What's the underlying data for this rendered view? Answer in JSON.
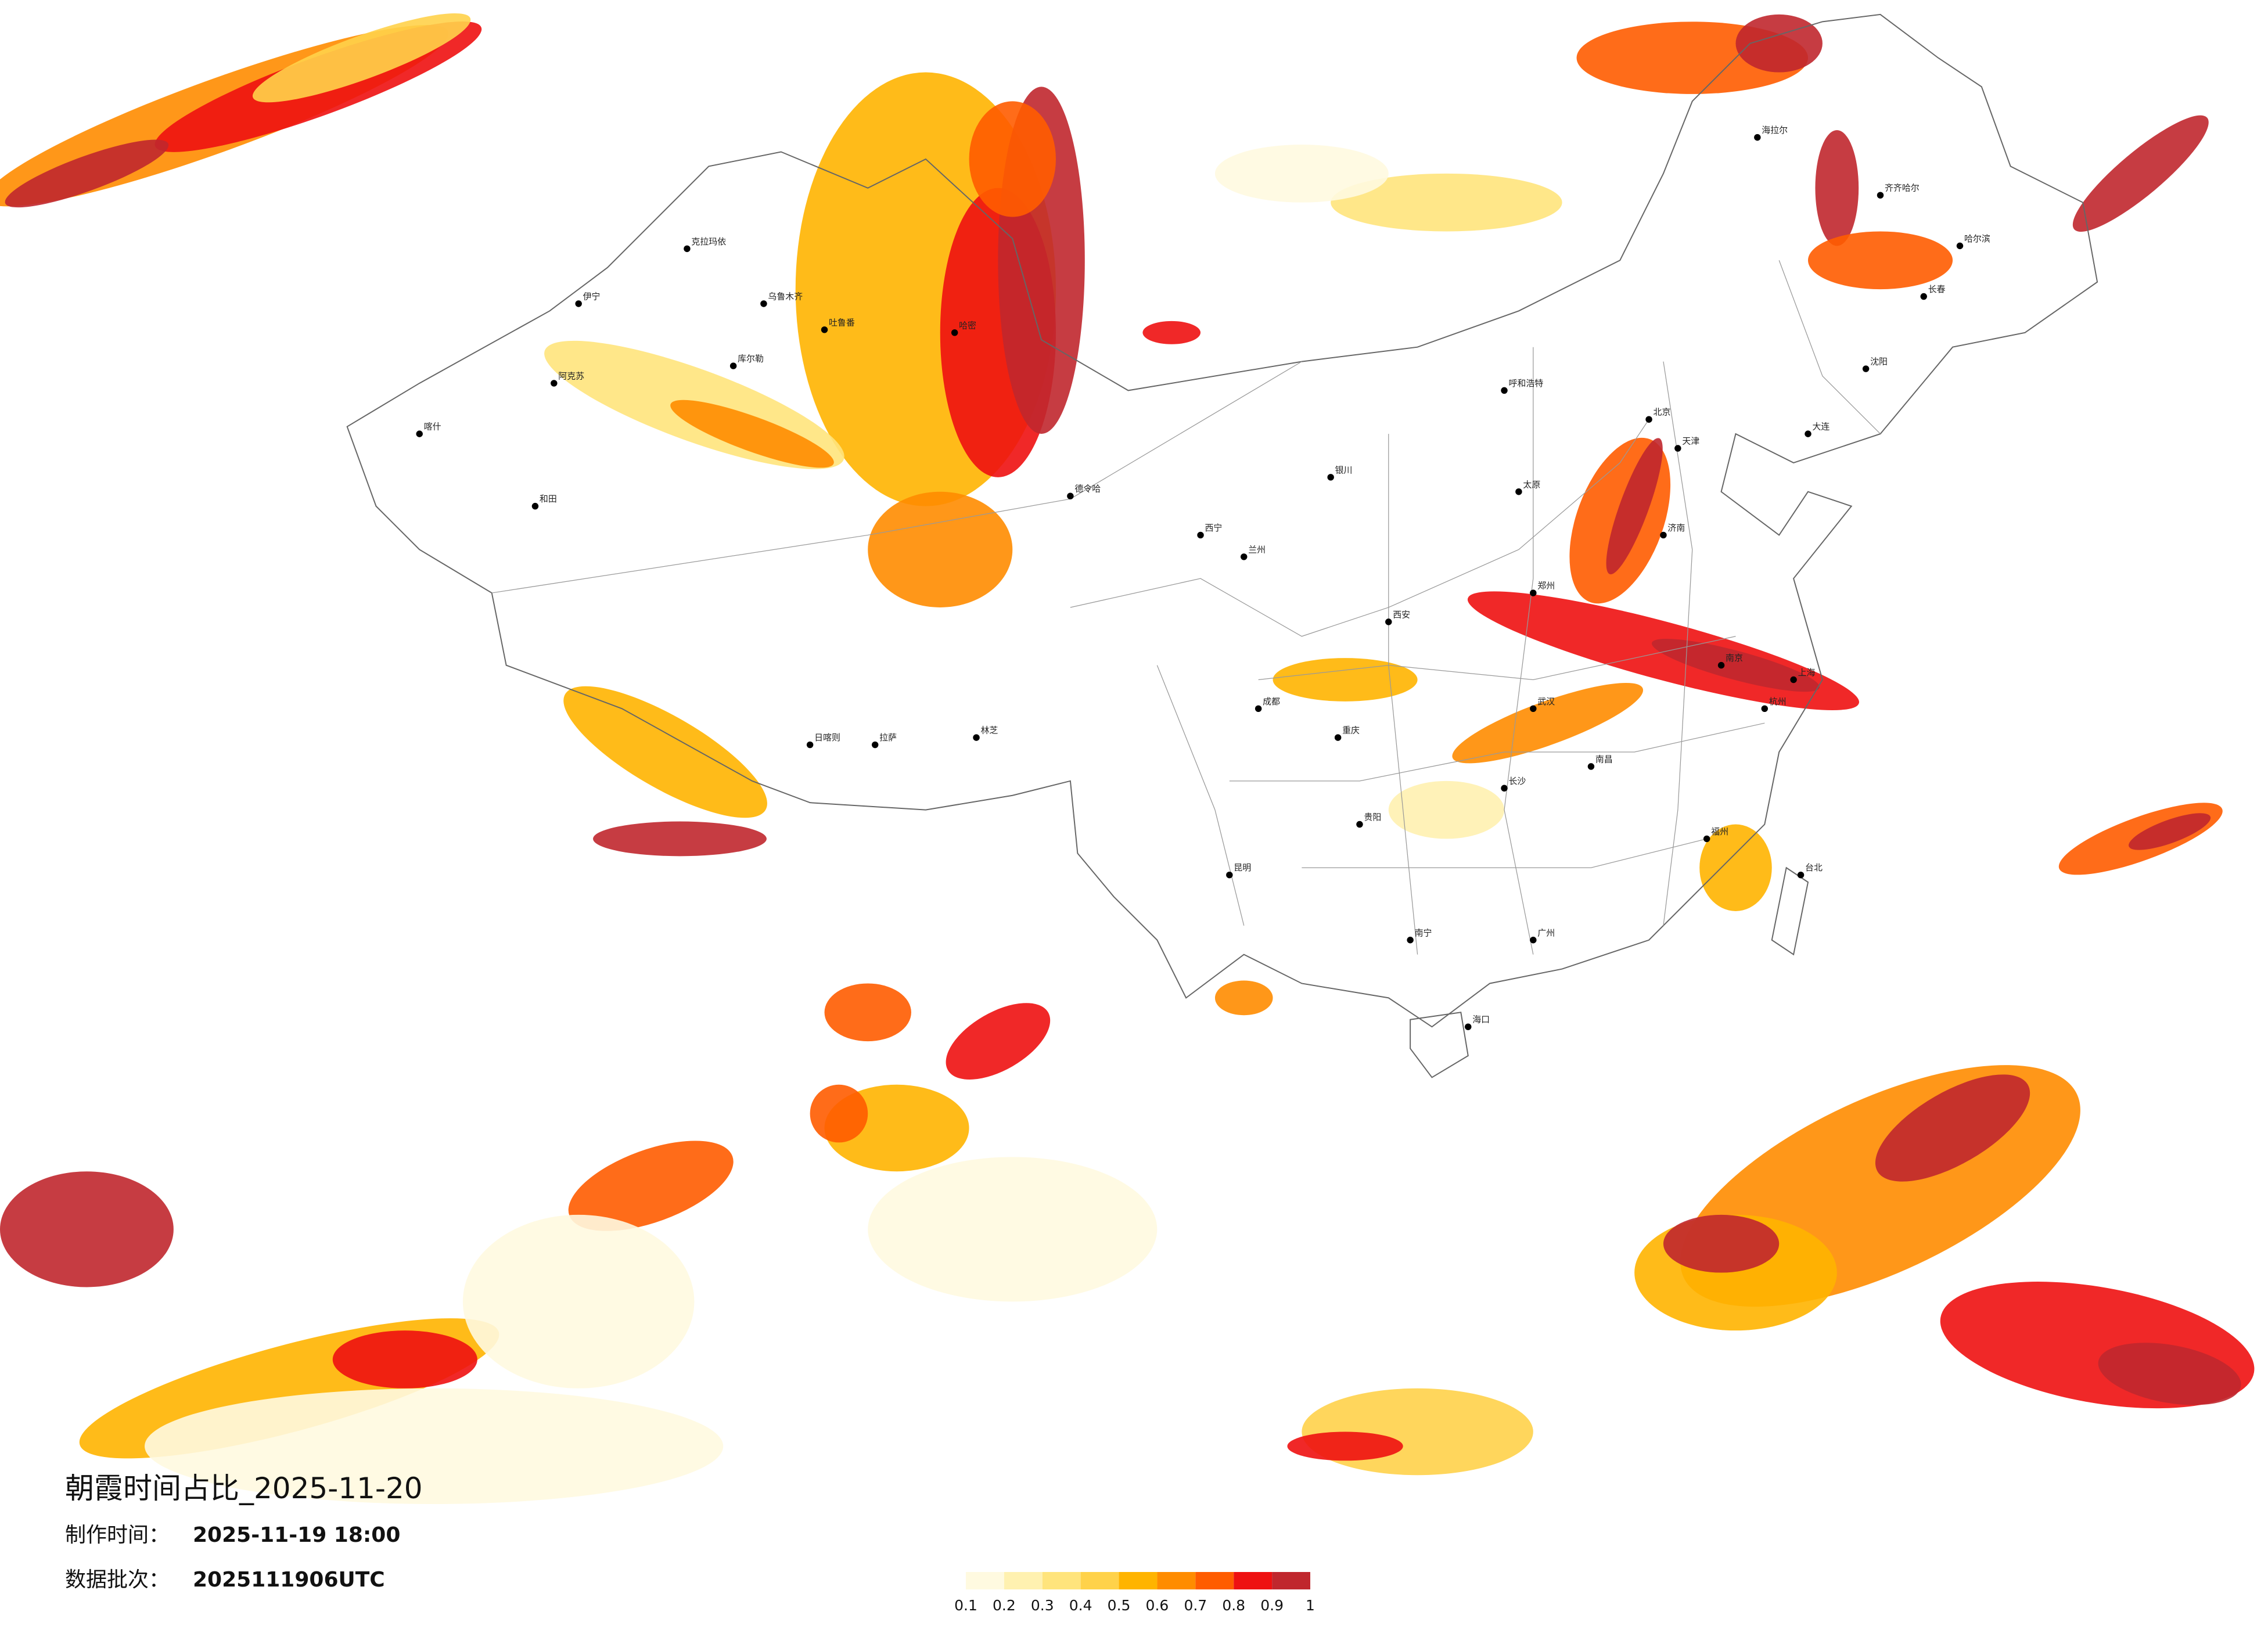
{
  "title": "朝霞时间占比_2025-11-20",
  "make_time_label": "制作时间：",
  "make_time": "2025-11-19 18:00",
  "batch_label": "数据批次：",
  "batch": "2025111906UTC",
  "colorbar": {
    "ticks": [
      0.1,
      0.2,
      0.3,
      0.4,
      0.5,
      0.6,
      0.7,
      0.8,
      0.9,
      1
    ],
    "colors": [
      "#fffae0",
      "#fff1b0",
      "#ffe47c",
      "#ffd24a",
      "#ffb400",
      "#ff8c00",
      "#ff5c00",
      "#ee1111",
      "#c0272d"
    ]
  },
  "cities": [
    "克拉玛依",
    "伊宁",
    "乌鲁木齐",
    "吐鲁番",
    "哈密",
    "库尔勒",
    "阿克苏",
    "喀什",
    "和田",
    "德令哈",
    "拉萨",
    "日喀则",
    "林芝",
    "呼和浩特",
    "北京",
    "天津",
    "哈尔滨",
    "长春",
    "兰州",
    "西安",
    "成都",
    "重庆",
    "昆明",
    "贵阳",
    "南宁",
    "广州",
    "武汉",
    "长沙",
    "南昌",
    "上海",
    "南京",
    "杭州",
    "福州",
    "济南",
    "郑州",
    "太原",
    "海口",
    "齐齐哈尔",
    "海拉尔",
    "沈阳",
    "大连",
    "银川",
    "西宁",
    "台北"
  ]
}
